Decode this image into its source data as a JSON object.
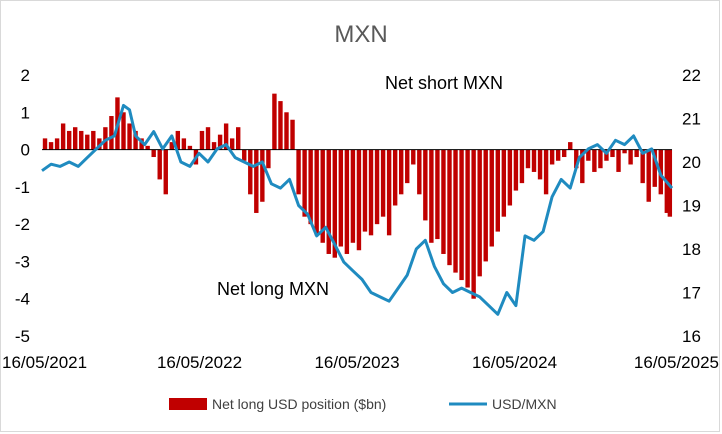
{
  "chart_data": {
    "type": "bar+line",
    "title": "MXN",
    "annotations": [
      "Net short MXN",
      "Net long MXN"
    ],
    "x_ticks": [
      "16/05/2021",
      "16/05/2022",
      "16/05/2023",
      "16/05/2024",
      "16/05/2025"
    ],
    "y_left_ticks": [
      "2",
      "1",
      "0",
      "-1",
      "-2",
      "-3",
      "-4",
      "-5"
    ],
    "y_right_ticks": [
      "22",
      "21",
      "20",
      "19",
      "18",
      "17",
      "16"
    ],
    "y_left_range": [
      -5,
      2
    ],
    "y_right_range": [
      16,
      22
    ],
    "x_range": [
      "2021-05-16",
      "2025-05-16"
    ],
    "legend_position": "bottom",
    "colors": {
      "bars": "#c00000",
      "line": "#1f8bc0"
    },
    "series": [
      {
        "name": "Net long USD position ($bn)",
        "type": "bar",
        "axis": "left",
        "dates": [
          "2021-05-23",
          "2021-06-06",
          "2021-06-20",
          "2021-07-04",
          "2021-07-18",
          "2021-08-01",
          "2021-08-15",
          "2021-08-29",
          "2021-09-12",
          "2021-09-26",
          "2021-10-10",
          "2021-10-24",
          "2021-11-07",
          "2021-11-21",
          "2021-12-05",
          "2021-12-19",
          "2022-01-02",
          "2022-01-16",
          "2022-01-30",
          "2022-02-13",
          "2022-02-27",
          "2022-03-13",
          "2022-03-27",
          "2022-04-10",
          "2022-04-24",
          "2022-05-08",
          "2022-05-22",
          "2022-06-05",
          "2022-06-19",
          "2022-07-03",
          "2022-07-17",
          "2022-07-31",
          "2022-08-14",
          "2022-08-28",
          "2022-09-11",
          "2022-09-25",
          "2022-10-09",
          "2022-10-23",
          "2022-11-06",
          "2022-11-20",
          "2022-12-04",
          "2022-12-18",
          "2023-01-01",
          "2023-01-15",
          "2023-01-29",
          "2023-02-12",
          "2023-02-26",
          "2023-03-12",
          "2023-03-26",
          "2023-04-09",
          "2023-04-23",
          "2023-05-07",
          "2023-05-21",
          "2023-06-04",
          "2023-06-18",
          "2023-07-02",
          "2023-07-16",
          "2023-07-30",
          "2023-08-13",
          "2023-08-27",
          "2023-09-10",
          "2023-09-24",
          "2023-10-08",
          "2023-10-22",
          "2023-11-05",
          "2023-11-19",
          "2023-12-03",
          "2023-12-17",
          "2023-12-31",
          "2024-01-14",
          "2024-01-28",
          "2024-02-11",
          "2024-02-25",
          "2024-03-10",
          "2024-03-24",
          "2024-04-07",
          "2024-04-21",
          "2024-05-05",
          "2024-05-19",
          "2024-06-02",
          "2024-06-16",
          "2024-06-30",
          "2024-07-14",
          "2024-07-28",
          "2024-08-11",
          "2024-08-25",
          "2024-09-08",
          "2024-09-22",
          "2024-10-06",
          "2024-10-20",
          "2024-11-03",
          "2024-11-17",
          "2024-12-01",
          "2024-12-15",
          "2024-12-29",
          "2025-01-12",
          "2025-01-26",
          "2025-02-09",
          "2025-02-23",
          "2025-03-09",
          "2025-03-23",
          "2025-04-06",
          "2025-04-20",
          "2025-05-04",
          "2025-05-11"
        ],
        "values": [
          0.3,
          0.2,
          0.3,
          0.7,
          0.5,
          0.6,
          0.5,
          0.4,
          0.5,
          0.3,
          0.6,
          0.9,
          1.4,
          1.0,
          0.7,
          0.5,
          0.3,
          0.1,
          -0.2,
          -0.8,
          -1.2,
          0.2,
          0.5,
          0.3,
          0.1,
          -0.4,
          0.5,
          0.6,
          0.2,
          0.4,
          0.7,
          0.3,
          0.6,
          -0.3,
          -1.2,
          -1.7,
          -1.4,
          -0.5,
          1.5,
          1.3,
          1.0,
          0.8,
          -1.2,
          -1.8,
          -2.0,
          -2.3,
          -2.5,
          -2.8,
          -2.9,
          -2.6,
          -2.8,
          -2.5,
          -2.7,
          -2.2,
          -2.3,
          -2.0,
          -1.8,
          -2.3,
          -1.5,
          -1.2,
          -0.9,
          -0.4,
          -1.2,
          -1.9,
          -2.5,
          -2.4,
          -2.8,
          -3.1,
          -3.3,
          -3.5,
          -3.7,
          -4.0,
          -3.4,
          -3.0,
          -2.6,
          -2.2,
          -1.8,
          -1.5,
          -1.1,
          -0.9,
          -0.5,
          -0.6,
          -0.8,
          -1.2,
          -0.4,
          -0.3,
          -0.2,
          0.2,
          -0.5,
          -0.9,
          -0.3,
          -0.6,
          -0.5,
          -0.3,
          -0.2,
          -0.6,
          -0.1,
          -0.4,
          -0.2,
          -0.9,
          -1.4,
          -1.0,
          -1.2,
          -1.7,
          -1.8
        ]
      },
      {
        "name": "USD/MXN",
        "type": "line",
        "axis": "right",
        "dates": [
          "2021-05-16",
          "2021-06-06",
          "2021-06-27",
          "2021-07-18",
          "2021-08-08",
          "2021-08-29",
          "2021-09-19",
          "2021-10-10",
          "2021-10-31",
          "2021-11-21",
          "2021-12-05",
          "2021-12-19",
          "2022-01-09",
          "2022-01-30",
          "2022-02-20",
          "2022-03-13",
          "2022-04-03",
          "2022-04-24",
          "2022-05-15",
          "2022-06-05",
          "2022-06-26",
          "2022-07-17",
          "2022-08-07",
          "2022-08-28",
          "2022-09-18",
          "2022-10-09",
          "2022-10-30",
          "2022-11-20",
          "2022-12-11",
          "2023-01-01",
          "2023-01-22",
          "2023-02-12",
          "2023-03-05",
          "2023-03-26",
          "2023-04-16",
          "2023-05-07",
          "2023-05-28",
          "2023-06-18",
          "2023-07-09",
          "2023-07-30",
          "2023-08-20",
          "2023-09-10",
          "2023-10-01",
          "2023-10-22",
          "2023-11-12",
          "2023-12-03",
          "2023-12-24",
          "2024-01-14",
          "2024-02-04",
          "2024-02-25",
          "2024-03-17",
          "2024-04-07",
          "2024-04-28",
          "2024-05-19",
          "2024-06-09",
          "2024-06-30",
          "2024-07-21",
          "2024-08-11",
          "2024-09-01",
          "2024-09-22",
          "2024-10-13",
          "2024-11-03",
          "2024-11-24",
          "2024-12-15",
          "2025-01-05",
          "2025-01-26",
          "2025-02-16",
          "2025-03-09",
          "2025-03-30",
          "2025-04-20",
          "2025-05-16"
        ],
        "values": [
          19.8,
          19.95,
          19.9,
          20.0,
          19.9,
          20.1,
          20.3,
          20.5,
          20.6,
          21.3,
          21.2,
          20.6,
          20.4,
          20.7,
          20.3,
          20.6,
          20.0,
          19.9,
          20.2,
          20.0,
          20.3,
          20.4,
          20.1,
          20.0,
          19.9,
          20.0,
          19.5,
          19.4,
          19.6,
          19.0,
          18.8,
          18.3,
          18.5,
          18.1,
          17.7,
          17.5,
          17.3,
          17.0,
          16.9,
          16.8,
          17.1,
          17.4,
          18.0,
          18.2,
          17.6,
          17.2,
          17.0,
          17.1,
          17.0,
          16.9,
          16.7,
          16.5,
          17.0,
          16.7,
          18.3,
          18.2,
          18.4,
          19.2,
          19.6,
          19.4,
          20.1,
          20.3,
          20.4,
          20.2,
          20.5,
          20.4,
          20.6,
          20.2,
          20.3,
          19.7,
          19.4
        ]
      }
    ]
  }
}
